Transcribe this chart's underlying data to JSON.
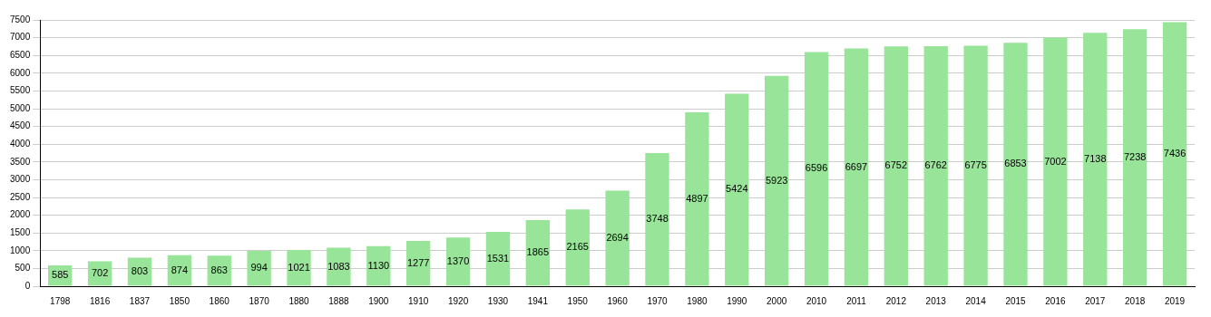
{
  "chart_data": {
    "type": "bar",
    "categories": [
      "1798",
      "1816",
      "1837",
      "1850",
      "1860",
      "1870",
      "1880",
      "1888",
      "1900",
      "1910",
      "1920",
      "1930",
      "1941",
      "1950",
      "1960",
      "1970",
      "1980",
      "1990",
      "2000",
      "2010",
      "2011",
      "2012",
      "2013",
      "2014",
      "2015",
      "2016",
      "2017",
      "2018",
      "2019"
    ],
    "values": [
      585,
      702,
      803,
      874,
      863,
      994,
      1021,
      1083,
      1130,
      1277,
      1370,
      1531,
      1865,
      2165,
      2694,
      3748,
      4897,
      5424,
      5923,
      6596,
      6697,
      6752,
      6762,
      6775,
      6853,
      7002,
      7138,
      7238,
      7436
    ],
    "color": "#98e498",
    "ylim": [
      0,
      7500
    ],
    "yticks": [
      0,
      500,
      1000,
      1500,
      2000,
      2500,
      3000,
      3500,
      4000,
      4500,
      5000,
      5500,
      6000,
      6500,
      7000,
      7500
    ],
    "grid": "y",
    "data_labels": true
  }
}
